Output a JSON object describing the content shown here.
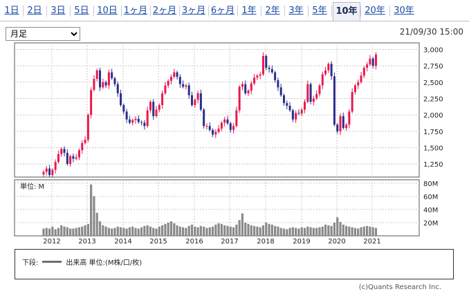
{
  "tabs": [
    {
      "label": "1日",
      "active": false
    },
    {
      "label": "2日",
      "active": false
    },
    {
      "label": "3日",
      "active": false
    },
    {
      "label": "5日",
      "active": false
    },
    {
      "label": "10日",
      "active": false
    },
    {
      "label": "1ヶ月",
      "active": false
    },
    {
      "label": "2ヶ月",
      "active": false
    },
    {
      "label": "3ヶ月",
      "active": false
    },
    {
      "label": "6ヶ月",
      "active": false
    },
    {
      "label": "1年",
      "active": false
    },
    {
      "label": "2年",
      "active": false
    },
    {
      "label": "3年",
      "active": false
    },
    {
      "label": "5年",
      "active": false
    },
    {
      "label": "10年",
      "active": true
    },
    {
      "label": "20年",
      "active": false
    },
    {
      "label": "30年",
      "active": false
    }
  ],
  "period_select": {
    "value": "月足"
  },
  "timestamp": "21/09/30 15:00",
  "legend": {
    "prefix": "下段:",
    "text": "出来高 単位:(M株/口/枚)"
  },
  "credit": "(c)Quants Research Inc.",
  "colors": {
    "up": "#e8194d",
    "down": "#2b2e8c",
    "volume": "#8a8a8a",
    "grid": "#c8c8c8"
  },
  "chart_data": [
    {
      "type": "candlestick",
      "title": "",
      "price_ticks": [
        "1,250",
        "1,500",
        "1,750",
        "2,000",
        "2,250",
        "2,500",
        "2,750",
        "3,000"
      ],
      "x_ticks": [
        "2012",
        "2013",
        "2014",
        "2015",
        "2016",
        "2017",
        "2018",
        "2019",
        "2020",
        "2021"
      ],
      "ylim": [
        1050,
        3100
      ],
      "close_series": [
        1130,
        1180,
        1080,
        1160,
        1280,
        1400,
        1480,
        1420,
        1250,
        1370,
        1330,
        1350,
        1460,
        1570,
        1620,
        2000,
        2380,
        2550,
        2680,
        2420,
        2500,
        2450,
        2650,
        2560,
        2470,
        2330,
        2150,
        2050,
        1930,
        1880,
        1920,
        1940,
        1890,
        1880,
        1830,
        2070,
        2200,
        1980,
        2080,
        2150,
        2330,
        2450,
        2520,
        2580,
        2650,
        2580,
        2470,
        2430,
        2450,
        2300,
        2150,
        2230,
        2330,
        2080,
        1830,
        1830,
        1770,
        1700,
        1740,
        1790,
        1880,
        1930,
        1870,
        1770,
        1830,
        2070,
        2430,
        2470,
        2330,
        2370,
        2480,
        2570,
        2600,
        2620,
        2900,
        2720,
        2700,
        2650,
        2530,
        2420,
        2300,
        2180,
        2140,
        2070,
        1930,
        2030,
        2020,
        2080,
        2200,
        2470,
        2200,
        2250,
        2320,
        2450,
        2620,
        2680,
        2780,
        2590,
        1850,
        1750,
        1980,
        1800,
        1850,
        2050,
        2350,
        2450,
        2500,
        2600,
        2720,
        2770,
        2860,
        2750,
        2920
      ]
    },
    {
      "type": "bar",
      "ylabel": "単位: M",
      "y_ticks": [
        "20M",
        "40M",
        "60M",
        "80M"
      ],
      "ylim": [
        0,
        85
      ],
      "volume_series": [
        11,
        12,
        11,
        14,
        10,
        12,
        16,
        14,
        13,
        11,
        11,
        12,
        13,
        14,
        16,
        18,
        78,
        60,
        35,
        22,
        16,
        14,
        12,
        11,
        12,
        14,
        13,
        12,
        11,
        13,
        14,
        12,
        11,
        13,
        15,
        16,
        14,
        12,
        11,
        14,
        16,
        18,
        20,
        22,
        19,
        16,
        14,
        13,
        12,
        15,
        17,
        14,
        13,
        15,
        14,
        12,
        13,
        14,
        17,
        19,
        18,
        16,
        15,
        14,
        13,
        17,
        24,
        34,
        20,
        18,
        16,
        15,
        14,
        13,
        16,
        20,
        18,
        17,
        15,
        14,
        12,
        11,
        10,
        12,
        13,
        12,
        11,
        13,
        12,
        14,
        13,
        12,
        12,
        13,
        14,
        17,
        16,
        15,
        20,
        28,
        21,
        17,
        15,
        14,
        13,
        12,
        11,
        13,
        14,
        15,
        14,
        13,
        12
      ]
    }
  ]
}
